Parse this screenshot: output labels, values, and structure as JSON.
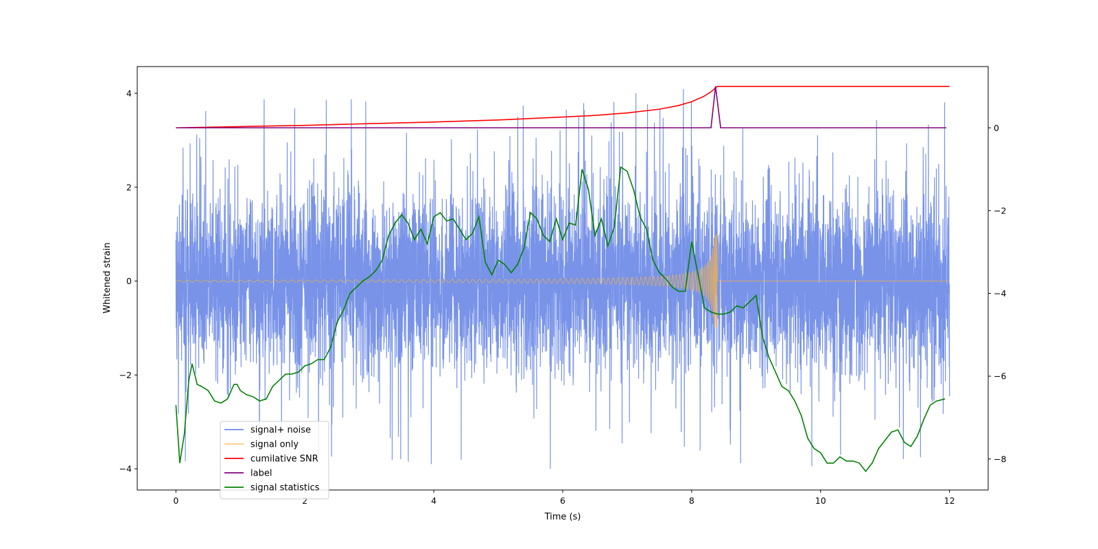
{
  "chart_data": {
    "type": "line",
    "title": "",
    "xlabel": "Time (s)",
    "ylabel": "Whitened strain",
    "y2label": "",
    "xlim": [
      -0.6,
      12.6
    ],
    "ylim": [
      -4.45,
      4.57
    ],
    "y2lim": [
      -8.75,
      1.48
    ],
    "x_ticks": [
      0,
      2,
      4,
      6,
      8,
      10,
      12
    ],
    "y_ticks": [
      -4,
      -2,
      0,
      2,
      4
    ],
    "y2_ticks": [
      -8,
      -6,
      -4,
      -2,
      0
    ],
    "grid": false,
    "legend_position": "lower-left",
    "merger_time": 8.4,
    "series": [
      {
        "name": "signal+ noise",
        "axis": "left",
        "color": "#6d8ae6",
        "description": "whitened noise with injected signal, about 12,000 samples spanning 0–12 s, mostly within ±2.5 with spikes to about ±4.1",
        "x_range": [
          0,
          12
        ],
        "typical_amplitude": 1.6,
        "max": 4.13,
        "min": -4.07
      },
      {
        "name": "signal only",
        "axis": "left",
        "color": "#f5b34c",
        "description": "chirp waveform growing in amplitude until merger near 8.4 s, zero afterwards",
        "x_range": [
          0,
          12
        ],
        "start_amplitude": 0.02,
        "peak_amplitude": 1.0,
        "peak_time": 8.4
      },
      {
        "name": "cumilative SNR",
        "axis": "right",
        "color": "#ff0000",
        "x": [
          0,
          1,
          2,
          3,
          4,
          5,
          6,
          6.5,
          7,
          7.5,
          7.8,
          8.0,
          8.2,
          8.3,
          8.38,
          8.4,
          12
        ],
        "y": [
          0.0,
          0.03,
          0.06,
          0.1,
          0.14,
          0.19,
          0.26,
          0.3,
          0.36,
          0.45,
          0.54,
          0.63,
          0.77,
          0.87,
          0.98,
          1.0,
          1.0
        ]
      },
      {
        "name": "label",
        "axis": "right",
        "color": "#800080",
        "x": [
          0,
          8.3,
          8.37,
          8.45,
          11.95
        ],
        "y": [
          0,
          0,
          1,
          0,
          0
        ]
      },
      {
        "name": "signal statistics",
        "axis": "right",
        "color": "#008000",
        "x": [
          0,
          0.06,
          0.13,
          0.2,
          0.25,
          0.33,
          0.4,
          0.5,
          0.6,
          0.7,
          0.8,
          0.9,
          0.95,
          1.0,
          1.1,
          1.2,
          1.3,
          1.4,
          1.5,
          1.6,
          1.7,
          1.8,
          1.9,
          2.0,
          2.1,
          2.2,
          2.3,
          2.4,
          2.5,
          2.6,
          2.7,
          2.8,
          2.9,
          3.0,
          3.1,
          3.2,
          3.3,
          3.4,
          3.5,
          3.6,
          3.7,
          3.8,
          3.9,
          4.0,
          4.1,
          4.2,
          4.3,
          4.4,
          4.5,
          4.6,
          4.7,
          4.8,
          4.9,
          5.0,
          5.1,
          5.2,
          5.3,
          5.4,
          5.5,
          5.6,
          5.7,
          5.8,
          5.9,
          6.0,
          6.1,
          6.2,
          6.3,
          6.4,
          6.5,
          6.6,
          6.7,
          6.8,
          6.9,
          7.0,
          7.1,
          7.2,
          7.3,
          7.4,
          7.5,
          7.6,
          7.7,
          7.8,
          7.9,
          8.0,
          8.1,
          8.2,
          8.3,
          8.4,
          8.5,
          8.6,
          8.7,
          8.8,
          8.9,
          9.0,
          9.1,
          9.2,
          9.3,
          9.4,
          9.5,
          9.6,
          9.7,
          9.8,
          9.9,
          10.0,
          10.1,
          10.2,
          10.3,
          10.4,
          10.5,
          10.6,
          10.7,
          10.8,
          10.9,
          11.0,
          11.1,
          11.2,
          11.3,
          11.4,
          11.5,
          11.6,
          11.7,
          11.8,
          11.93
        ],
        "y": [
          -6.7,
          -8.1,
          -7.4,
          -6.1,
          -5.7,
          -6.2,
          -6.25,
          -6.35,
          -6.6,
          -6.65,
          -6.55,
          -6.2,
          -6.2,
          -6.35,
          -6.45,
          -6.5,
          -6.6,
          -6.55,
          -6.25,
          -6.1,
          -5.95,
          -5.95,
          -5.9,
          -5.75,
          -5.7,
          -5.6,
          -5.6,
          -5.3,
          -4.7,
          -4.4,
          -4.0,
          -3.85,
          -3.7,
          -3.6,
          -3.45,
          -3.2,
          -2.6,
          -2.3,
          -2.1,
          -2.3,
          -2.7,
          -2.45,
          -2.8,
          -2.15,
          -2.05,
          -2.25,
          -2.2,
          -2.45,
          -2.7,
          -2.55,
          -2.15,
          -3.25,
          -3.55,
          -3.2,
          -3.3,
          -3.5,
          -3.3,
          -2.9,
          -2.05,
          -2.2,
          -2.6,
          -2.75,
          -2.2,
          -2.7,
          -2.3,
          -2.35,
          -1.0,
          -1.5,
          -2.6,
          -2.2,
          -2.85,
          -2.4,
          -0.95,
          -1.05,
          -1.5,
          -2.15,
          -2.45,
          -3.2,
          -3.5,
          -3.65,
          -3.85,
          -3.95,
          -3.95,
          -2.75,
          -3.55,
          -4.35,
          -4.45,
          -4.5,
          -4.5,
          -4.45,
          -4.3,
          -4.35,
          -4.2,
          -4.05,
          -5.05,
          -5.55,
          -5.9,
          -6.25,
          -6.35,
          -6.6,
          -6.95,
          -7.5,
          -7.75,
          -7.85,
          -8.1,
          -8.1,
          -7.95,
          -8.05,
          -8.05,
          -8.1,
          -8.3,
          -8.1,
          -7.75,
          -7.55,
          -7.35,
          -7.3,
          -7.6,
          -7.7,
          -7.45,
          -7.05,
          -6.7,
          -6.6,
          -6.55
        ]
      }
    ]
  }
}
